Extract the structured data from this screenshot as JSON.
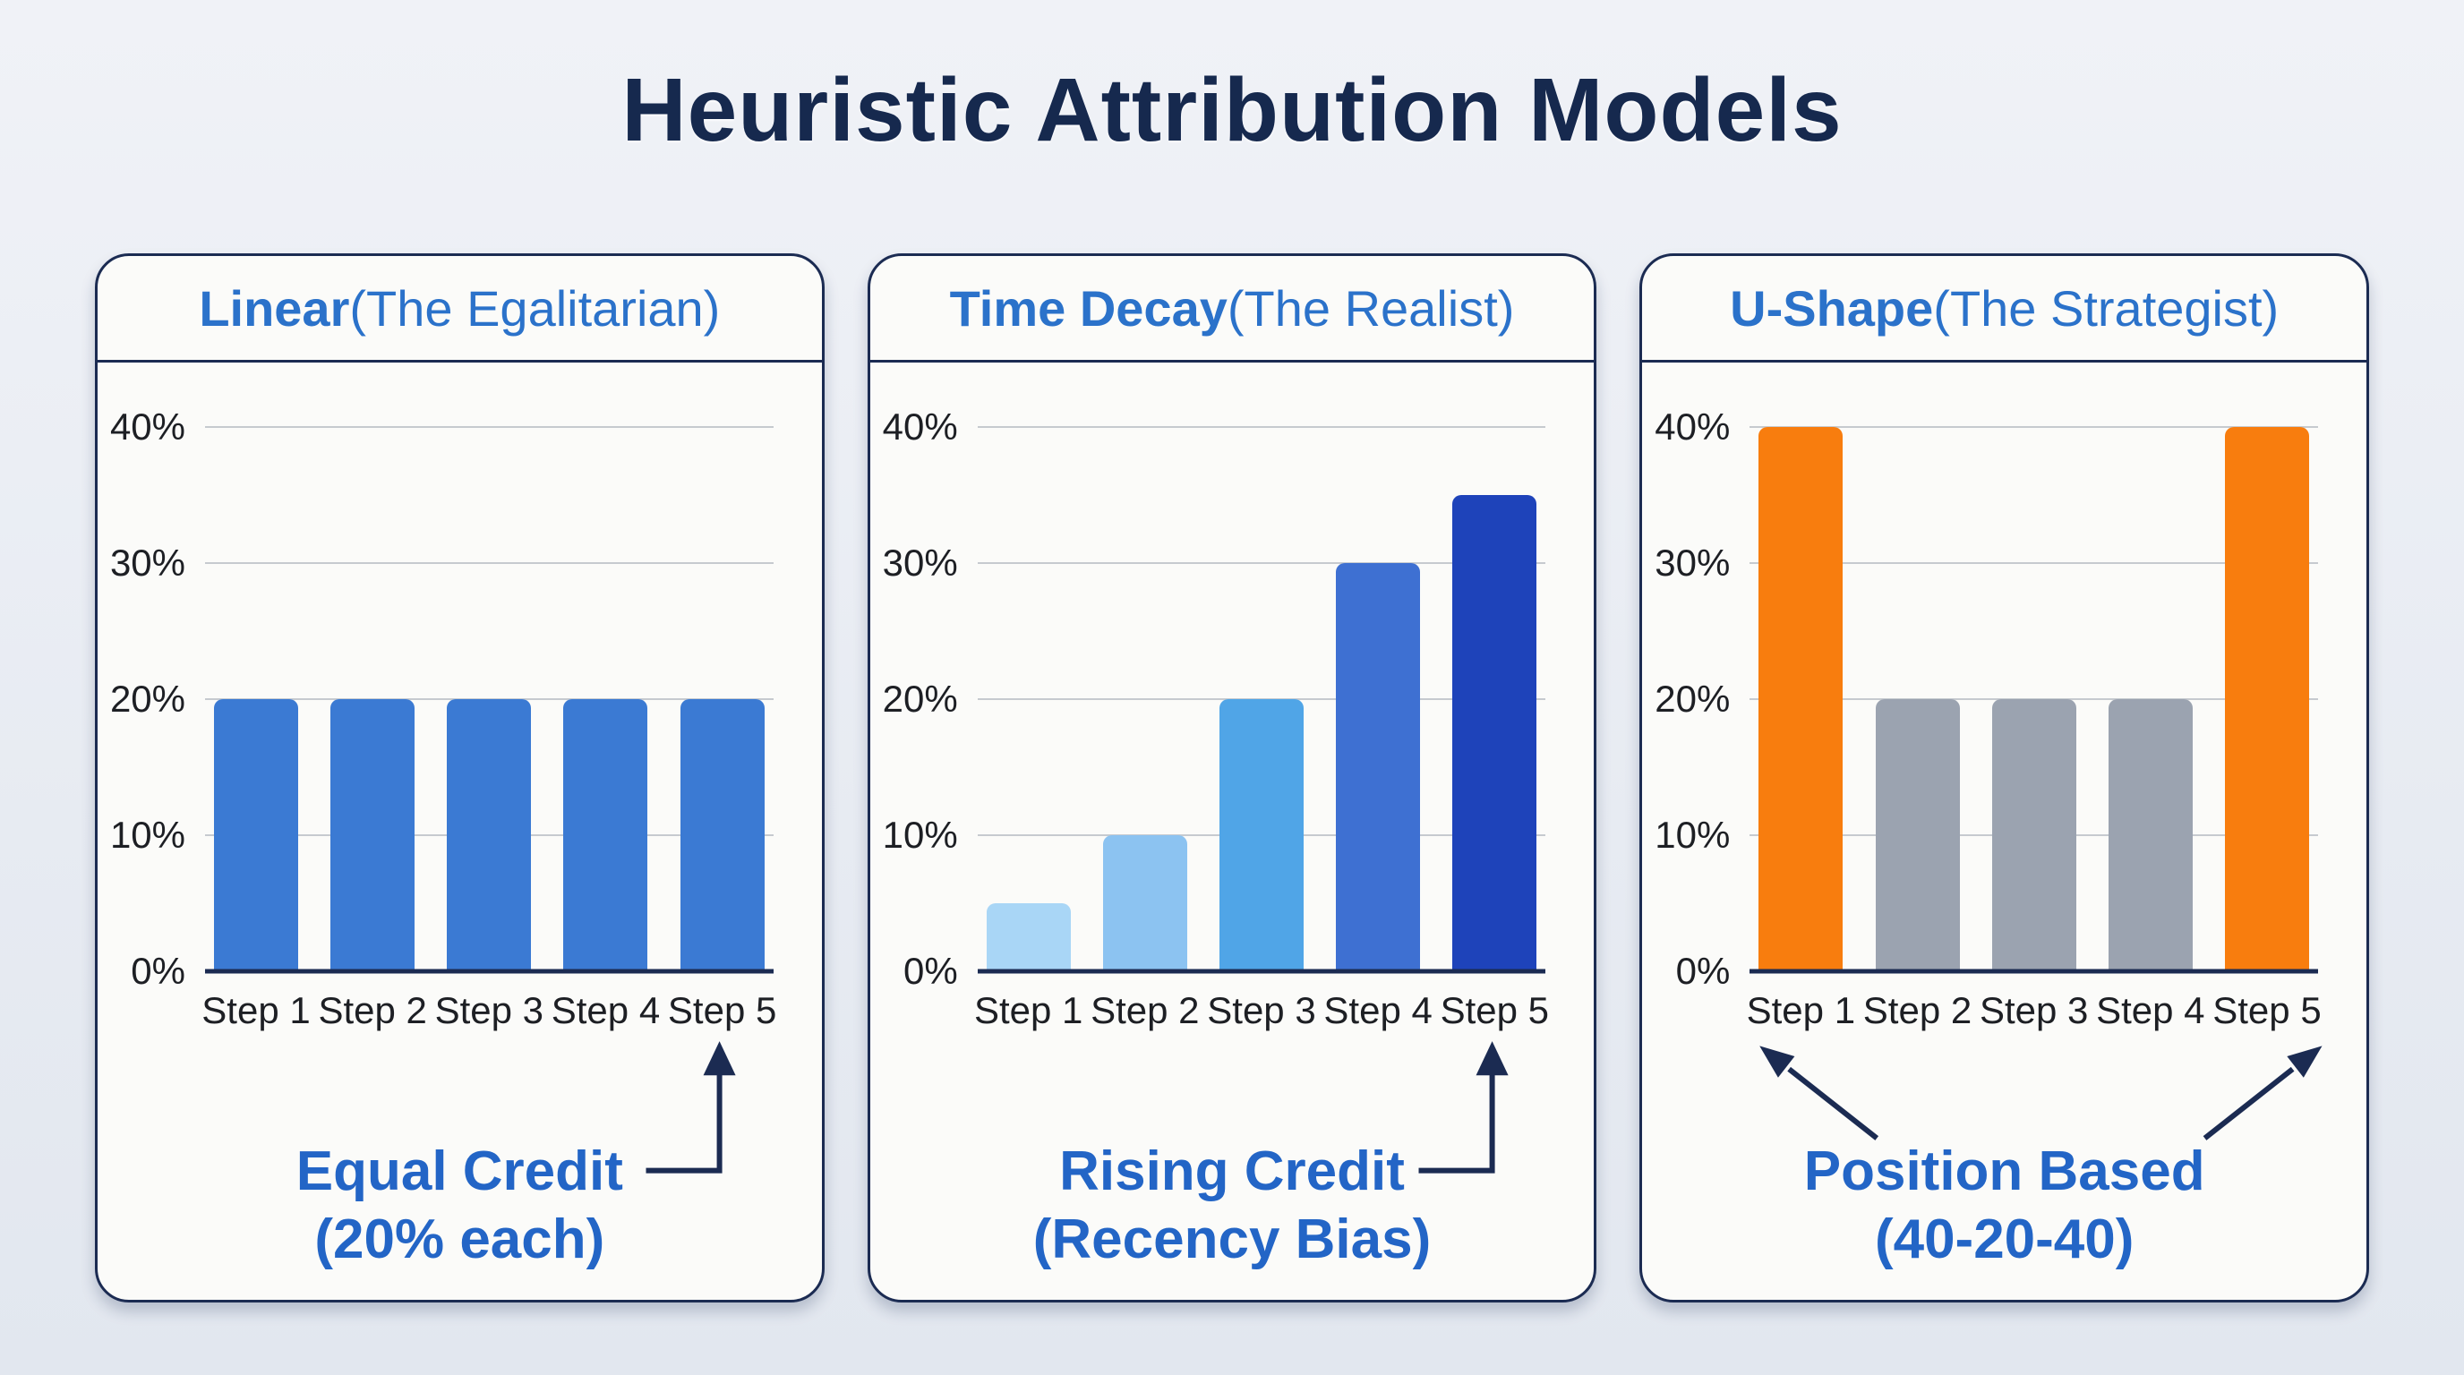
{
  "page": {
    "title": "Heuristic Attribution Models"
  },
  "colors": {
    "page_background": "#e7ebf2",
    "card_background": "#fbfbf9",
    "border_navy": "#1b2b52",
    "title_navy": "#16294e",
    "heading_blue": "#2b72ca",
    "annotation_blue": "#2365c6",
    "axis_text": "#1d1f24",
    "gridline": "#c6cacf",
    "linear_bar_blue": "#3b7ad3",
    "ushape_orange": "#f87d0e",
    "ushape_gray": "#9ba3b0"
  },
  "chart_data": [
    {
      "type": "bar",
      "title_bold": "Linear",
      "title_rest": " (The Egalitarian)",
      "categories": [
        "Step 1",
        "Step 2",
        "Step 3",
        "Step 4",
        "Step 5"
      ],
      "values": [
        20,
        20,
        20,
        20,
        20
      ],
      "bar_colors": [
        "#3b7ad3",
        "#3b7ad3",
        "#3b7ad3",
        "#3b7ad3",
        "#3b7ad3"
      ],
      "ylim": [
        0,
        40
      ],
      "yticks": [
        {
          "label": "40%",
          "value": 40
        },
        {
          "label": "30%",
          "value": 30
        },
        {
          "label": "20%",
          "value": 20
        },
        {
          "label": "10%",
          "value": 10
        },
        {
          "label": "0%",
          "value": 0
        }
      ],
      "grid": true,
      "legend": "none",
      "annotation": {
        "line1": "Equal Credit",
        "line2": "(20% each)",
        "arrow_style": "elbow-up-right",
        "arrow_targets": [
          "Step 5"
        ]
      }
    },
    {
      "type": "bar",
      "title_bold": "Time Decay",
      "title_rest": " (The Realist)",
      "categories": [
        "Step 1",
        "Step 2",
        "Step 3",
        "Step 4",
        "Step 5"
      ],
      "values": [
        5,
        10,
        20,
        30,
        35
      ],
      "bar_colors": [
        "#a9d6f6",
        "#8cc3f1",
        "#50a5e7",
        "#3e70d2",
        "#1e43ba"
      ],
      "ylim": [
        0,
        40
      ],
      "yticks": [
        {
          "label": "40%",
          "value": 40
        },
        {
          "label": "30%",
          "value": 30
        },
        {
          "label": "20%",
          "value": 20
        },
        {
          "label": "10%",
          "value": 10
        },
        {
          "label": "0%",
          "value": 0
        }
      ],
      "grid": true,
      "legend": "none",
      "annotation": {
        "line1": "Rising Credit",
        "line2": "(Recency Bias)",
        "arrow_style": "elbow-up-right",
        "arrow_targets": [
          "Step 5"
        ]
      }
    },
    {
      "type": "bar",
      "title_bold": "U-Shape",
      "title_rest": " (The Strategist)",
      "categories": [
        "Step 1",
        "Step 2",
        "Step 3",
        "Step 4",
        "Step 5"
      ],
      "values": [
        40,
        20,
        20,
        20,
        40
      ],
      "bar_colors": [
        "#f87d0e",
        "#9ba3b0",
        "#9ba3b0",
        "#9ba3b0",
        "#f87d0e"
      ],
      "ylim": [
        0,
        40
      ],
      "yticks": [
        {
          "label": "40%",
          "value": 40
        },
        {
          "label": "30%",
          "value": 30
        },
        {
          "label": "20%",
          "value": 20
        },
        {
          "label": "10%",
          "value": 10
        },
        {
          "label": "0%",
          "value": 0
        }
      ],
      "grid": true,
      "legend": "none",
      "annotation": {
        "line1": "Position Based",
        "line2": "(40-20-40)",
        "arrow_style": "double-diagonal",
        "arrow_targets": [
          "Step 1",
          "Step 5"
        ]
      }
    }
  ]
}
